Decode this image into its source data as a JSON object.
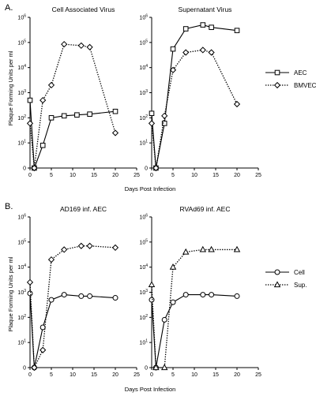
{
  "figure": {
    "panel_labels": [
      "A.",
      "B."
    ],
    "x_axis_label": "Days Post Infection",
    "y_axis_label": "Plaque Forming Units per ml",
    "y_ticks": [
      {
        "base": "0",
        "exp": ""
      },
      {
        "base": "10",
        "exp": "1"
      },
      {
        "base": "10",
        "exp": "2"
      },
      {
        "base": "10",
        "exp": "3"
      },
      {
        "base": "10",
        "exp": "4"
      },
      {
        "base": "10",
        "exp": "5"
      },
      {
        "base": "10",
        "exp": "6"
      }
    ],
    "x_ticks": [
      "0",
      "5",
      "10",
      "15",
      "20",
      "25"
    ]
  },
  "legends": {
    "A": [
      "AEC",
      "BMVEC"
    ],
    "B": [
      "Cell",
      "Sup."
    ]
  },
  "chart_data": [
    {
      "type": "line",
      "panel": "A",
      "title": "Cell Associated Virus",
      "xlabel": "Days Post Infection",
      "ylabel": "Plaque Forming Units per ml",
      "y_scale": "log",
      "xlim": [
        0,
        25
      ],
      "ylim": [
        1,
        1000000
      ],
      "series": [
        {
          "name": "AEC",
          "marker": "square",
          "line": "solid",
          "x": [
            0,
            1,
            3,
            5,
            8,
            11,
            14,
            20
          ],
          "y": [
            500,
            1,
            8,
            100,
            120,
            130,
            140,
            180
          ]
        },
        {
          "name": "BMVEC",
          "marker": "diamond",
          "line": "dotted",
          "x": [
            0,
            1,
            3,
            5,
            8,
            12,
            14,
            20
          ],
          "y": [
            60,
            1,
            500,
            2000,
            85000,
            75000,
            65000,
            25
          ]
        }
      ]
    },
    {
      "type": "line",
      "panel": "A",
      "title": "Supernatant Virus",
      "xlabel": "Days Post Infection",
      "ylabel": "",
      "y_scale": "log",
      "xlim": [
        0,
        25
      ],
      "ylim": [
        1,
        1000000
      ],
      "series": [
        {
          "name": "AEC",
          "marker": "square",
          "line": "solid",
          "x": [
            0,
            1,
            3,
            5,
            8,
            12,
            14,
            20
          ],
          "y": [
            150,
            1,
            60,
            55000,
            350000,
            500000,
            400000,
            300000
          ]
        },
        {
          "name": "BMVEC",
          "marker": "diamond",
          "line": "dotted",
          "x": [
            0,
            1,
            3,
            5,
            8,
            12,
            14,
            20
          ],
          "y": [
            60,
            1,
            120,
            8000,
            40000,
            50000,
            40000,
            350
          ]
        }
      ]
    },
    {
      "type": "line",
      "panel": "B",
      "title": "AD169 inf. AEC",
      "xlabel": "Days Post Infection",
      "ylabel": "Plaque Forming Units per ml",
      "y_scale": "log",
      "xlim": [
        0,
        25
      ],
      "ylim": [
        1,
        1000000
      ],
      "series": [
        {
          "name": "Cell",
          "marker": "circle",
          "line": "solid",
          "x": [
            0,
            1,
            3,
            5,
            8,
            12,
            14,
            20
          ],
          "y": [
            900,
            1,
            40,
            500,
            800,
            700,
            700,
            600
          ]
        },
        {
          "name": "Sup.",
          "marker": "diamond",
          "line": "dotted",
          "x": [
            0,
            1,
            3,
            5,
            8,
            12,
            14,
            20
          ],
          "y": [
            2500,
            1,
            5,
            20000,
            50000,
            70000,
            70000,
            60000
          ]
        }
      ]
    },
    {
      "type": "line",
      "panel": "B",
      "title": "RVAd69 inf. AEC",
      "xlabel": "Days Post Infection",
      "ylabel": "",
      "y_scale": "log",
      "xlim": [
        0,
        25
      ],
      "ylim": [
        1,
        1000000
      ],
      "series": [
        {
          "name": "Cell",
          "marker": "circle",
          "line": "solid",
          "x": [
            0,
            1,
            3,
            5,
            8,
            12,
            14,
            20
          ],
          "y": [
            500,
            1,
            80,
            400,
            800,
            800,
            800,
            700
          ]
        },
        {
          "name": "Sup.",
          "marker": "triangle",
          "line": "dotted",
          "x": [
            0,
            1,
            3,
            5,
            8,
            12,
            14,
            20
          ],
          "y": [
            2000,
            1,
            1,
            10000,
            40000,
            50000,
            50000,
            50000
          ]
        }
      ]
    }
  ]
}
